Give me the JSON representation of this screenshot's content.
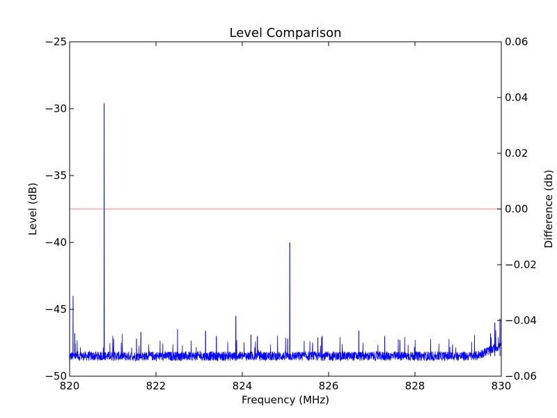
{
  "chart_data": {
    "type": "line",
    "title": "Level Comparison",
    "xlabel": "Frequency (MHz)",
    "ylabel": "Level (dB)",
    "y2label": "Difference (db)",
    "xlim": [
      820,
      830
    ],
    "ylim": [
      -50,
      -25
    ],
    "y2lim": [
      -0.06,
      0.06
    ],
    "grid": false,
    "x_ticks": [
      {
        "value": 820,
        "label": "820"
      },
      {
        "value": 822,
        "label": "822"
      },
      {
        "value": 824,
        "label": "824"
      },
      {
        "value": 826,
        "label": "826"
      },
      {
        "value": 828,
        "label": "828"
      },
      {
        "value": 830,
        "label": "830"
      }
    ],
    "y_ticks": [
      {
        "value": -25,
        "label": "−25"
      },
      {
        "value": -30,
        "label": "−30"
      },
      {
        "value": -35,
        "label": "−35"
      },
      {
        "value": -40,
        "label": "−40"
      },
      {
        "value": -45,
        "label": "−45"
      },
      {
        "value": -50,
        "label": "−50"
      }
    ],
    "y2_ticks": [
      {
        "value": 0.06,
        "label": "0.06"
      },
      {
        "value": 0.04,
        "label": "0.04"
      },
      {
        "value": 0.02,
        "label": "0.02"
      },
      {
        "value": 0.0,
        "label": "0.00"
      },
      {
        "value": -0.02,
        "label": "−0.02"
      },
      {
        "value": -0.04,
        "label": "−0.04"
      },
      {
        "value": -0.06,
        "label": "−0.06"
      }
    ],
    "series": [
      {
        "axis": "left",
        "color": "#0000ff",
        "baseline_db": -48.5,
        "noise_db": 0.35,
        "peaks": [
          {
            "x": 820.08,
            "y": -44.0
          },
          {
            "x": 820.12,
            "y": -46.8
          },
          {
            "x": 820.8,
            "y": -29.6
          },
          {
            "x": 821.0,
            "y": -47.0
          },
          {
            "x": 821.55,
            "y": -47.2
          },
          {
            "x": 821.65,
            "y": -46.7
          },
          {
            "x": 822.5,
            "y": -46.5
          },
          {
            "x": 823.15,
            "y": -46.6
          },
          {
            "x": 823.4,
            "y": -47.0
          },
          {
            "x": 823.85,
            "y": -45.5
          },
          {
            "x": 824.2,
            "y": -46.9
          },
          {
            "x": 824.35,
            "y": -47.0
          },
          {
            "x": 825.05,
            "y": -47.2
          },
          {
            "x": 825.1,
            "y": -40.0
          },
          {
            "x": 825.75,
            "y": -47.1
          },
          {
            "x": 825.85,
            "y": -47.0
          },
          {
            "x": 826.7,
            "y": -46.6
          },
          {
            "x": 827.3,
            "y": -47.0
          },
          {
            "x": 827.65,
            "y": -47.3
          },
          {
            "x": 829.75,
            "y": -46.8
          },
          {
            "x": 829.85,
            "y": -46.0
          },
          {
            "x": 829.97,
            "y": -45.7
          }
        ],
        "baseline_rise_from_x": 829.4,
        "baseline_rise_db": 0.8
      },
      {
        "axis": "right",
        "color": "#ffaaaa",
        "x": [
          820,
          830
        ],
        "values": [
          0.0,
          0.0
        ]
      }
    ]
  }
}
